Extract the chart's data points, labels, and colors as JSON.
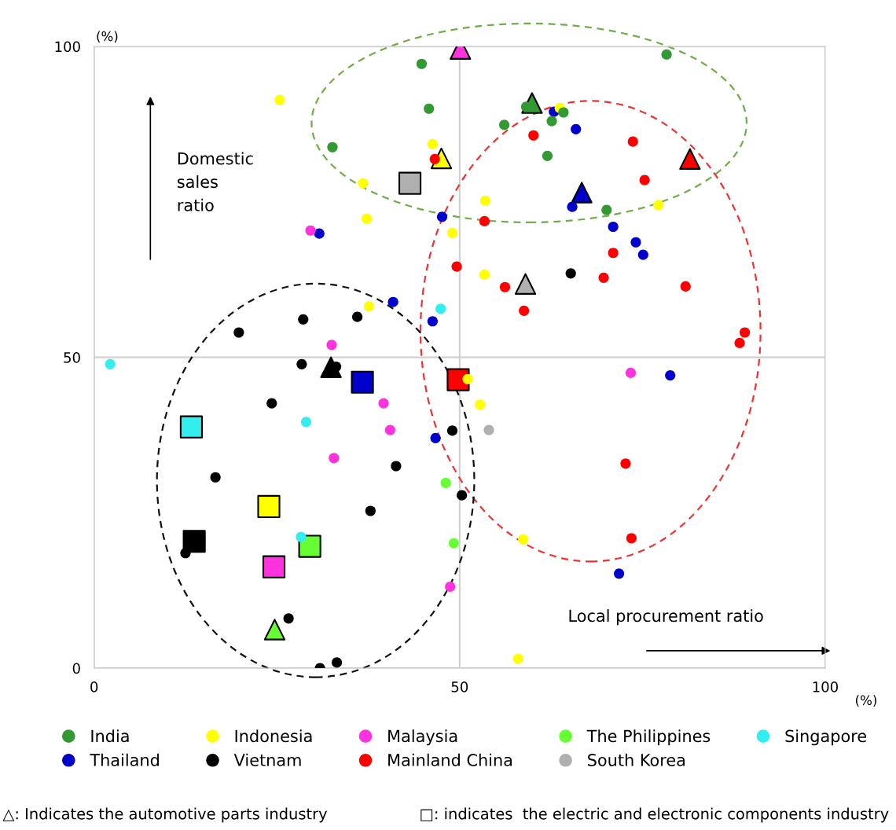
{
  "chart_data": {
    "type": "scatter",
    "xlabel": "Local procurement ratio",
    "ylabel": "Domestic\nsales\nratio",
    "xlim": [
      0,
      100
    ],
    "ylim": [
      0,
      100
    ],
    "xticks": [
      0,
      50,
      100
    ],
    "yticks": [
      0,
      50,
      100
    ],
    "grid": true,
    "legend": "bottom",
    "marker": "circle",
    "annotations": [
      "(%)",
      "(%)",
      "△: Indicates the automotive parts industry",
      "□: indicates  the electric and electronic components industry"
    ],
    "series": [
      {
        "name": "India",
        "color": "#339933",
        "x": [
          44.8,
          45.8,
          32.6,
          78.3,
          59.1,
          64.2,
          62.6,
          56.1,
          62.0,
          70.1
        ],
        "values": [
          97.2,
          90.0,
          83.8,
          98.7,
          90.3,
          89.4,
          88.0,
          87.4,
          82.4,
          73.7
        ]
      },
      {
        "name": "Indonesia",
        "color": "#ffff00",
        "x": [
          25.4,
          46.3,
          36.8,
          37.3,
          37.6,
          63.7,
          53.5,
          77.2,
          49.0,
          53.4,
          51.1,
          52.8,
          58.7,
          58.0
        ],
        "values": [
          91.4,
          84.3,
          78.0,
          72.3,
          58.2,
          90.1,
          75.2,
          74.5,
          70.0,
          63.3,
          46.5,
          42.4,
          20.7,
          1.5
        ]
      },
      {
        "name": "Malaysia",
        "color": "#ff33dd",
        "x": [
          29.6,
          32.5,
          39.6,
          40.5,
          32.8,
          73.4,
          48.7
        ],
        "values": [
          70.4,
          52.0,
          42.6,
          38.3,
          33.8,
          47.5,
          13.1
        ]
      },
      {
        "name": "The Philippines",
        "color": "#66ff33",
        "x": [
          48.1,
          49.2
        ],
        "values": [
          29.8,
          20.1
        ]
      },
      {
        "name": "Singapore",
        "color": "#33eeee",
        "x": [
          47.4,
          2.2,
          29.0,
          28.3
        ],
        "values": [
          57.8,
          48.9,
          39.6,
          21.1
        ]
      },
      {
        "name": "Thailand",
        "color": "#0000cc",
        "x": [
          47.6,
          30.8,
          40.9,
          46.3,
          62.9,
          65.9,
          65.4,
          71.0,
          74.1,
          75.1,
          46.7,
          78.8,
          71.8
        ],
        "values": [
          72.6,
          69.9,
          58.9,
          55.8,
          89.5,
          86.7,
          74.2,
          71.0,
          68.5,
          66.5,
          37.0,
          47.1,
          15.2
        ]
      },
      {
        "name": "Vietnam",
        "color": "#000000",
        "x": [
          19.8,
          28.6,
          36.0,
          65.2,
          28.4,
          33.1,
          24.3,
          41.3,
          16.6,
          37.8,
          12.5,
          26.6,
          33.2,
          30.9,
          49.0,
          50.3
        ],
        "values": [
          54.0,
          56.1,
          56.5,
          63.5,
          48.9,
          48.5,
          42.6,
          32.5,
          30.7,
          25.3,
          18.5,
          8.0,
          0.9,
          0.0,
          38.2,
          27.8
        ]
      },
      {
        "name": "Mainland China",
        "color": "#ff0000",
        "x": [
          46.6,
          60.1,
          73.7,
          75.3,
          53.4,
          71.0,
          49.6,
          69.7,
          56.2,
          80.9,
          58.8,
          89.0,
          88.3,
          72.7,
          73.5
        ],
        "values": [
          81.9,
          85.7,
          84.7,
          78.5,
          71.9,
          66.8,
          64.6,
          62.8,
          61.3,
          61.4,
          57.5,
          54.0,
          52.3,
          32.9,
          20.9
        ]
      },
      {
        "name": "South Korea",
        "color": "#b0b0b0",
        "x": [
          54.0
        ],
        "values": [
          38.3
        ]
      },
      {
        "color": "#339933",
        "marker": "triangle",
        "x": [
          59.9
        ],
        "values": [
          90.9
        ]
      },
      {
        "color": "#ffff00",
        "marker": "triangle",
        "x": [
          47.5
        ],
        "values": [
          82.0
        ]
      },
      {
        "color": "#ff33dd",
        "marker": "triangle",
        "x": [
          50.1
        ],
        "values": [
          99.6
        ]
      },
      {
        "color": "#66ff33",
        "marker": "triangle",
        "x": [
          24.7
        ],
        "values": [
          6.2
        ]
      },
      {
        "color": "#0000cc",
        "marker": "triangle",
        "x": [
          66.7
        ],
        "values": [
          76.5
        ]
      },
      {
        "color": "#000000",
        "marker": "triangle",
        "x": [
          32.4
        ],
        "values": [
          48.4
        ]
      },
      {
        "color": "#ff0000",
        "marker": "triangle",
        "x": [
          81.5
        ],
        "values": [
          81.9
        ]
      },
      {
        "color": "#b0b0b0",
        "marker": "triangle",
        "x": [
          59.0
        ],
        "values": [
          61.8
        ]
      },
      {
        "color": "#b0b0b0",
        "marker": "square",
        "x": [
          43.2
        ],
        "values": [
          78.0
        ]
      },
      {
        "color": "#0000cc",
        "marker": "square",
        "x": [
          36.7
        ],
        "values": [
          46.0
        ]
      },
      {
        "color": "#ff0000",
        "marker": "square",
        "x": [
          49.8
        ],
        "values": [
          46.4
        ]
      },
      {
        "color": "#33eeee",
        "marker": "square",
        "x": [
          13.3
        ],
        "values": [
          38.8
        ]
      },
      {
        "color": "#ffff00",
        "marker": "square",
        "x": [
          23.9
        ],
        "values": [
          26.0
        ]
      },
      {
        "color": "#000000",
        "marker": "square",
        "x": [
          13.7
        ],
        "values": [
          20.4
        ]
      },
      {
        "color": "#66ff33",
        "marker": "square",
        "x": [
          29.5
        ],
        "values": [
          19.6
        ]
      },
      {
        "color": "#ff33dd",
        "marker": "square",
        "x": [
          24.6
        ],
        "values": [
          16.3
        ]
      }
    ]
  }
}
